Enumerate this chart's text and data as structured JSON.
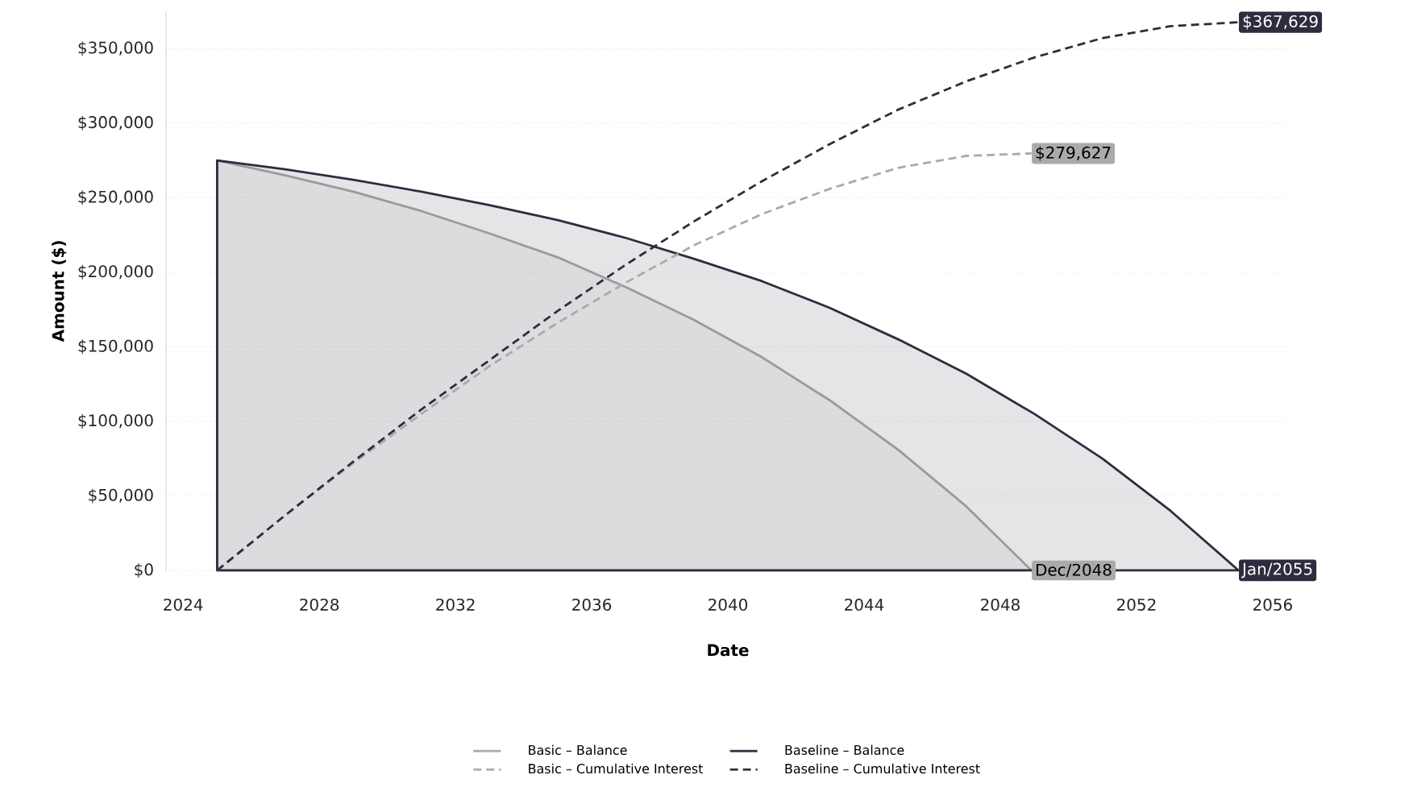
{
  "chart_data": {
    "type": "line",
    "xlabel": "Date",
    "ylabel": "Amount ($)",
    "series": [
      {
        "name": "Basic – Balance",
        "type": "area",
        "color": "#aaaaaa",
        "line_style": "solid",
        "x": [
          "2025-01",
          "2027-01",
          "2029-01",
          "2031-01",
          "2033-01",
          "2035-01",
          "2037-01",
          "2039-01",
          "2041-01",
          "2043-01",
          "2045-01",
          "2047-01",
          "2048-12"
        ],
        "values": [
          275000,
          265000,
          254000,
          241000,
          226000,
          210000,
          190000,
          168000,
          143000,
          114000,
          81000,
          43000,
          0
        ]
      },
      {
        "name": "Baseline – Balance",
        "type": "area",
        "color": "#2d2d3f",
        "line_style": "solid",
        "x": [
          "2025-01",
          "2027-01",
          "2029-01",
          "2031-01",
          "2033-01",
          "2035-01",
          "2037-01",
          "2039-01",
          "2041-01",
          "2043-01",
          "2045-01",
          "2047-01",
          "2049-01",
          "2051-01",
          "2053-01",
          "2055-01"
        ],
        "values": [
          275000,
          269000,
          262000,
          254000,
          245000,
          235000,
          223000,
          209000,
          194000,
          176000,
          155000,
          132000,
          105000,
          75000,
          40000,
          0
        ]
      },
      {
        "name": "Basic – Cumulative Interest",
        "color": "#aaaaaa",
        "line_style": "dashed",
        "x": [
          "2025-01",
          "2027-01",
          "2029-01",
          "2031-01",
          "2033-01",
          "2035-01",
          "2037-01",
          "2039-01",
          "2041-01",
          "2043-01",
          "2045-01",
          "2047-01",
          "2048-12"
        ],
        "values": [
          0,
          37000,
          72000,
          105000,
          137000,
          166000,
          193000,
          218000,
          239000,
          256000,
          270000,
          278000,
          279627
        ]
      },
      {
        "name": "Baseline – Cumulative Interest",
        "color": "#2d2d3f",
        "line_style": "dashed",
        "x": [
          "2025-01",
          "2027-01",
          "2029-01",
          "2031-01",
          "2033-01",
          "2035-01",
          "2037-01",
          "2039-01",
          "2041-01",
          "2043-01",
          "2045-01",
          "2047-01",
          "2049-01",
          "2051-01",
          "2053-01",
          "2055-01"
        ],
        "values": [
          0,
          37000,
          73000,
          108000,
          141000,
          174000,
          205000,
          234000,
          261000,
          286000,
          309000,
          328000,
          344000,
          357000,
          365000,
          367629
        ]
      }
    ],
    "annotations": [
      {
        "text": "$367,629",
        "x": "2055-01",
        "y": 367629
      },
      {
        "text": "$279,627",
        "x": "2048-12",
        "y": 279627
      },
      {
        "text": "Dec/2048",
        "x": "2048-12",
        "y": 0
      },
      {
        "text": "Jan/2055",
        "x": "2055-01",
        "y": 0
      }
    ],
    "xlim": [
      "2023-07",
      "2056-07"
    ],
    "xticks": [
      "2024",
      "2028",
      "2032",
      "2036",
      "2040",
      "2044",
      "2048",
      "2052",
      "2056"
    ],
    "ylim": [
      0,
      375000
    ],
    "yticks": [
      {
        "value": 0,
        "label": "$0"
      },
      {
        "value": 50000,
        "label": "$50,000"
      },
      {
        "value": 100000,
        "label": "$100,000"
      },
      {
        "value": 150000,
        "label": "$150,000"
      },
      {
        "value": 200000,
        "label": "$200,000"
      },
      {
        "value": 250000,
        "label": "$250,000"
      },
      {
        "value": 300000,
        "label": "$300,000"
      },
      {
        "value": 350000,
        "label": "$350,000"
      }
    ],
    "grid": "y",
    "legend": "bottom"
  }
}
